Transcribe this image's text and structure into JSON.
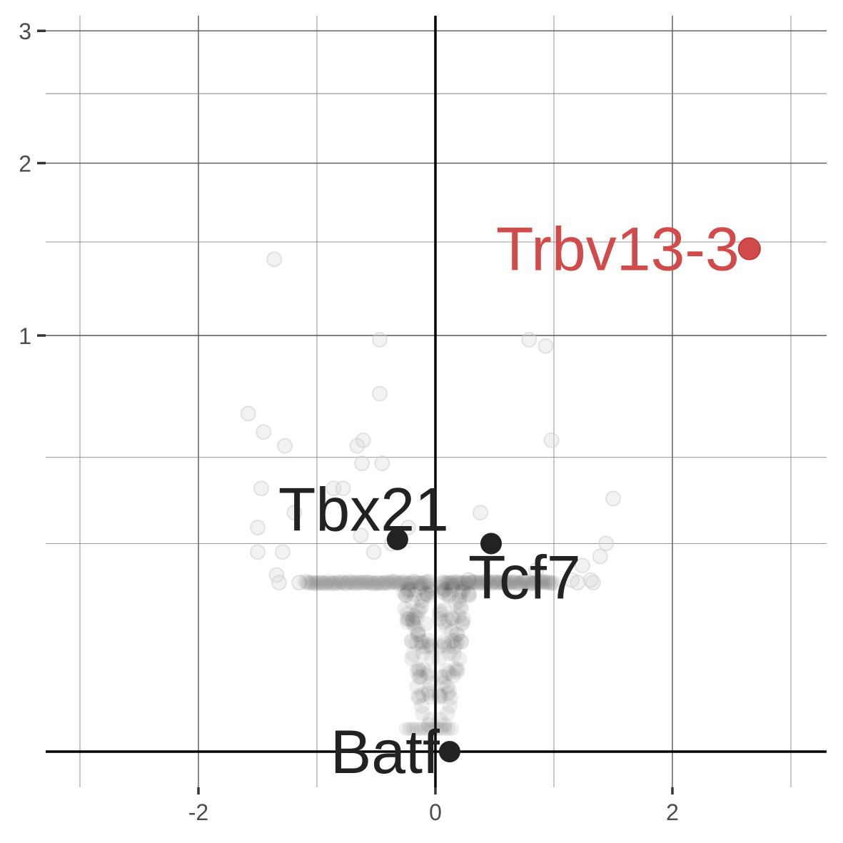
{
  "colors": {
    "highlight": "#d14b4b",
    "labeled": "#222222",
    "background_points": "#d9d9d9",
    "dense_points": "#333333"
  },
  "chart_data": {
    "type": "scatter",
    "title": "",
    "xlabel": "",
    "ylabel": "",
    "xlim": [
      -3.0,
      3.3
    ],
    "ylim": [
      -0.22,
      3.2
    ],
    "y_scale": "sqrt",
    "grid": true,
    "legend": "none",
    "x_ticks": [
      {
        "value": -2,
        "label": "-2"
      },
      {
        "value": 0,
        "label": "0"
      },
      {
        "value": 2,
        "label": "2"
      }
    ],
    "y_ticks": [
      {
        "value": 1,
        "label": "1"
      },
      {
        "value": 2,
        "label": "2"
      },
      {
        "value": 3,
        "label": "3"
      }
    ],
    "labeled_genes": [
      {
        "label": "Trbv13-3",
        "x": 2.65,
        "y": 1.46,
        "color": "#d14b4b",
        "label_side": "left"
      },
      {
        "label": "Tbx21",
        "x": -0.32,
        "y": 0.26,
        "color": "#222222",
        "label_side": "above-left"
      },
      {
        "label": "Tcf7",
        "x": 0.47,
        "y": 0.25,
        "color": "#222222",
        "label_side": "below-right"
      },
      {
        "label": "Batf",
        "x": 0.12,
        "y": 0.0,
        "color": "#222222",
        "label_side": "left"
      }
    ],
    "background_points": [
      {
        "x": -1.36,
        "y": 1.4
      },
      {
        "x": -0.47,
        "y": 0.98
      },
      {
        "x": 0.79,
        "y": 0.98
      },
      {
        "x": 0.93,
        "y": 0.95
      },
      {
        "x": -0.47,
        "y": 0.74
      },
      {
        "x": -1.58,
        "y": 0.66
      },
      {
        "x": -1.45,
        "y": 0.59
      },
      {
        "x": -1.27,
        "y": 0.54
      },
      {
        "x": -0.61,
        "y": 0.56
      },
      {
        "x": -0.66,
        "y": 0.54
      },
      {
        "x": 0.98,
        "y": 0.56
      },
      {
        "x": -0.62,
        "y": 0.48
      },
      {
        "x": -0.45,
        "y": 0.48
      },
      {
        "x": -1.47,
        "y": 0.4
      },
      {
        "x": -0.86,
        "y": 0.4
      },
      {
        "x": -0.78,
        "y": 0.4
      },
      {
        "x": 1.5,
        "y": 0.37
      },
      {
        "x": -1.19,
        "y": 0.33
      },
      {
        "x": 0.38,
        "y": 0.33
      },
      {
        "x": -1.5,
        "y": 0.29
      },
      {
        "x": -0.23,
        "y": 0.29
      },
      {
        "x": -0.63,
        "y": 0.27
      },
      {
        "x": -0.37,
        "y": 0.25
      },
      {
        "x": 1.44,
        "y": 0.25
      },
      {
        "x": -1.5,
        "y": 0.23
      },
      {
        "x": -1.29,
        "y": 0.23
      },
      {
        "x": -0.52,
        "y": 0.23
      },
      {
        "x": 1.39,
        "y": 0.22
      },
      {
        "x": 1.24,
        "y": 0.2
      },
      {
        "x": 0.85,
        "y": 0.19
      },
      {
        "x": -1.34,
        "y": 0.18
      },
      {
        "x": 0.28,
        "y": 0.17
      },
      {
        "x": 1.15,
        "y": 0.17
      },
      {
        "x": 1.31,
        "y": 0.17
      },
      {
        "x": -1.32,
        "y": 0.165
      },
      {
        "x": -1.15,
        "y": 0.165
      },
      {
        "x": 1.2,
        "y": 0.165
      },
      {
        "x": 1.33,
        "y": 0.165
      }
    ],
    "dense_band": {
      "note": "thousands of near-zero genes drawn as an overlapping band",
      "left_range": [
        -1.1,
        -0.05
      ],
      "right_range": [
        0.05,
        1.0
      ],
      "band_y": 0.165
    }
  }
}
